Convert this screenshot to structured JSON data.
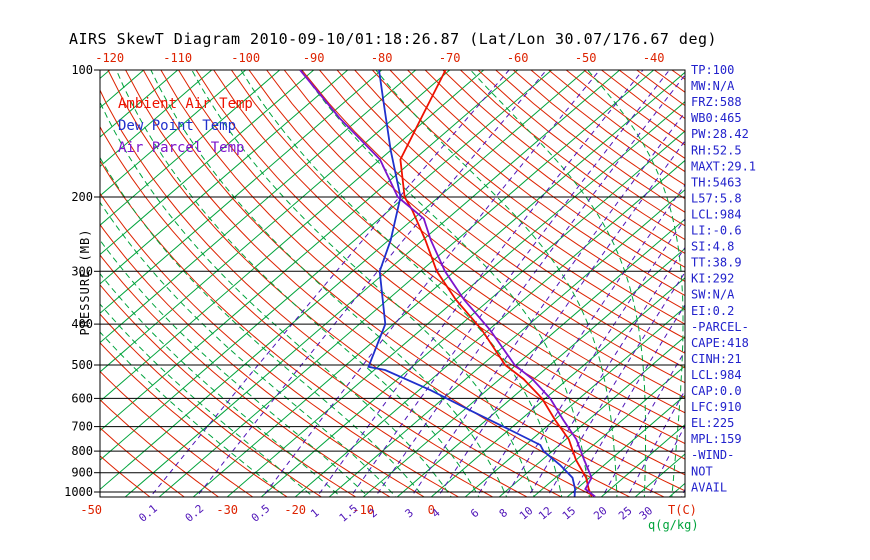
{
  "title": "AIRS SkewT Diagram 2010-09-10/01:18:26.87 (Lat/Lon 30.07/176.67 deg)",
  "axes": {
    "y_label": "PRESSURE (MB)",
    "pressure_ticks": [
      100,
      200,
      300,
      400,
      500,
      600,
      700,
      800,
      900,
      1000
    ],
    "top_temp_ticks": [
      -120,
      -110,
      -100,
      -90,
      -80,
      -70,
      -60,
      -50,
      -40
    ],
    "bottom_temp_ticks": [
      -50,
      -30,
      -20,
      -10,
      0
    ],
    "mixing_ratio_ticks": [
      0.1,
      0.2,
      0.5,
      1,
      1.5,
      2,
      3,
      4,
      6,
      8,
      10,
      12,
      15,
      20,
      25,
      30
    ],
    "temp_unit_label": "T(C)",
    "mixing_unit_label": "q(g/kg)"
  },
  "legend": [
    {
      "label": "Ambient Air Temp",
      "color": "#ee1100"
    },
    {
      "label": "Dew Point Temp",
      "color": "#2030cc"
    },
    {
      "label": "Air Parcel Temp",
      "color": "#7d14cc"
    }
  ],
  "stats": [
    "TP:100",
    "MW:N/A",
    "FRZ:588",
    "WB0:465",
    "PW:28.42",
    "RH:52.5",
    "MAXT:29.1",
    "TH:5463",
    "L57:5.8",
    "LCL:984",
    "LI:-0.6",
    "SI:4.8",
    "TT:38.9",
    "KI:292",
    "SW:N/A",
    "EI:0.2",
    "-PARCEL-",
    "CAPE:418",
    "CINH:21",
    "LCL:984",
    "CAP:0.0",
    "LFC:910",
    "EL:225",
    "MPL:159",
    "-WIND-",
    "NOT",
    "AVAIL"
  ],
  "colors": {
    "isotherm": "#00a33c",
    "dry_adiabat": "#dd2200",
    "moist_adiabat": "#00a33c",
    "mixing_ratio": "#4f14b8",
    "temp_label": "#dd2200",
    "mixing_label": "#4f14b8",
    "mixing_unit": "#00a33c",
    "axis_text": "#000000",
    "stats_text": "#2222cc",
    "frame": "#000000"
  },
  "grid": {
    "isotherm_range_c": [
      -180,
      45
    ],
    "isotherm_step_c": 5,
    "dry_adiabat_theta_k": [
      230,
      455,
      5
    ],
    "moist_adiabat_starts_c": [
      -20,
      -16,
      -12,
      -8,
      -4,
      0,
      4,
      8,
      12,
      16,
      20,
      24,
      28,
      32,
      36
    ],
    "extra_mixing_lines": [
      40
    ]
  },
  "chart_data": {
    "type": "line",
    "subtype": "skew-t-log-p",
    "title": "AIRS SkewT Diagram 2010-09-10/01:18:26.87 (Lat/Lon 30.07/176.67 deg)",
    "xlabel": "T(C)",
    "ylabel": "PRESSURE (MB)",
    "y_scale": "log",
    "ylim": [
      1030,
      100
    ],
    "xlim_at_surface_c": [
      -50,
      36
    ],
    "legend_position": "upper-left-inside",
    "series": [
      {
        "name": "Ambient Air Temp",
        "color": "#ee1100",
        "pressure": [
          1025,
          984,
          925,
          840,
          750,
          675,
          600,
          540,
          500,
          413,
          350,
          300,
          253,
          215,
          200,
          163,
          130,
          100
        ],
        "temperature_c": [
          23.5,
          21.8,
          19.5,
          15.0,
          10.4,
          5.1,
          -0.5,
          -6.5,
          -11.6,
          -21.0,
          -30.0,
          -37.6,
          -44.6,
          -51.6,
          -55.0,
          -62.0,
          -66.0,
          -70.6
        ]
      },
      {
        "name": "Dew Point Temp",
        "color": "#2030cc",
        "pressure": [
          1025,
          984,
          925,
          863,
          800,
          774,
          713,
          640,
          573,
          514,
          505,
          400,
          300,
          253,
          200,
          155,
          118,
          100
        ],
        "temperature_c": [
          21.0,
          19.8,
          17.5,
          13.5,
          8.7,
          7.2,
          0.2,
          -9.1,
          -18.4,
          -28.4,
          -31.4,
          -36.2,
          -46.0,
          -49.7,
          -55.6,
          -65.0,
          -74.6,
          -80.4
        ]
      },
      {
        "name": "Air Parcel Temp",
        "color": "#7d14cc",
        "pressure": [
          1025,
          984,
          925,
          840,
          750,
          675,
          600,
          540,
          500,
          413,
          350,
          300,
          253,
          225,
          200,
          163,
          130,
          100
        ],
        "temperature_c": [
          24.0,
          21.3,
          20.3,
          16.2,
          11.5,
          6.3,
          0.7,
          -5.2,
          -10.2,
          -19.8,
          -28.8,
          -36.4,
          -43.8,
          -48.5,
          -56.0,
          -65.0,
          -78.0,
          -92.0
        ]
      }
    ]
  }
}
